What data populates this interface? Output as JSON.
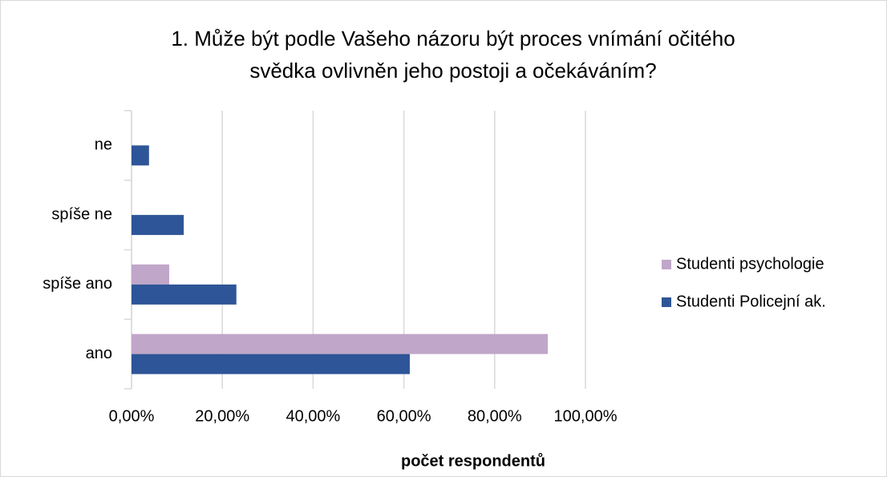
{
  "chart_data": {
    "type": "hbar",
    "title": [
      "1. Může být podle Vašeho názoru být proces vnímání očitého",
      "svědka ovlivněn jeho postoji a očekáváním?"
    ],
    "x_label": "počet respondentů",
    "categories": [
      "ne",
      "spíše ne",
      "spíše ano",
      "ano"
    ],
    "series": [
      {
        "name": "Studenti psychologie",
        "color": "#c0a6c9",
        "values": [
          0,
          0,
          8.3,
          91.7
        ]
      },
      {
        "name": "Studenti Policejní ak.",
        "color": "#2e5597",
        "values": [
          3.85,
          11.5,
          23.1,
          61.3
        ]
      }
    ],
    "xlim": [
      0,
      100
    ],
    "xticks": [
      {
        "value": 0,
        "label": "0,00%"
      },
      {
        "value": 20,
        "label": "20,00%"
      },
      {
        "value": 40,
        "label": "40,00%"
      },
      {
        "value": 60,
        "label": "60,00%"
      },
      {
        "value": 80,
        "label": "80,00%"
      },
      {
        "value": 100,
        "label": "100,00%"
      }
    ],
    "grid": true,
    "legend": "right"
  }
}
